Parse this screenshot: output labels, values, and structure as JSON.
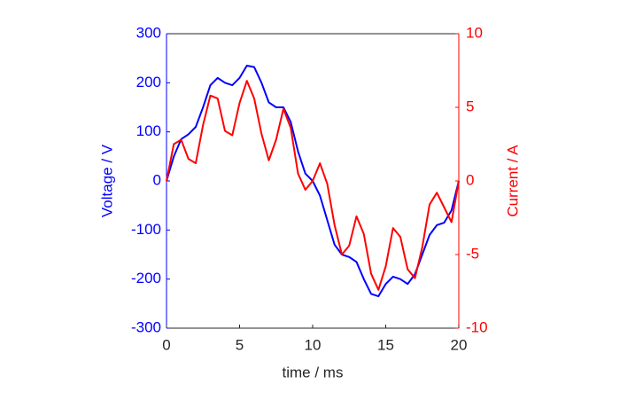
{
  "chart_data": {
    "type": "line",
    "x": [
      0,
      0.5,
      1,
      1.5,
      2,
      2.5,
      3,
      3.5,
      4,
      4.5,
      5,
      5.5,
      6,
      6.5,
      7,
      7.5,
      8,
      8.5,
      9,
      9.5,
      10,
      10.5,
      11,
      11.5,
      12,
      12.5,
      13,
      13.5,
      14,
      14.5,
      15,
      15.5,
      16,
      16.5,
      17,
      17.5,
      18,
      18.5,
      19,
      19.5,
      20
    ],
    "series": [
      {
        "name": "Voltage",
        "color": "#0000ff",
        "values": [
          0,
          50,
          85,
          95,
          110,
          150,
          195,
          210,
          200,
          195,
          210,
          235,
          232,
          200,
          160,
          150,
          150,
          120,
          60,
          15,
          0,
          -30,
          -80,
          -130,
          -150,
          -155,
          -165,
          -200,
          -230,
          -235,
          -210,
          -195,
          -200,
          -210,
          -190,
          -150,
          -110,
          -90,
          -85,
          -60,
          0
        ]
      },
      {
        "name": "Current",
        "color": "#ff0000",
        "axis": "y2",
        "values": [
          0,
          2.5,
          2.8,
          1.5,
          1.2,
          3.8,
          5.8,
          5.6,
          3.4,
          3.1,
          5.3,
          6.8,
          5.6,
          3.2,
          1.4,
          2.8,
          4.9,
          3.6,
          0.5,
          -0.6,
          0,
          1.2,
          -0.2,
          -3,
          -5,
          -4.4,
          -2.4,
          -3.6,
          -6.3,
          -7.4,
          -5.8,
          -3.2,
          -3.8,
          -6,
          -6.6,
          -4.5,
          -1.6,
          -0.8,
          -1.8,
          -2.8,
          0
        ]
      }
    ],
    "xlabel": "time / ms",
    "ylabel": "Voltage / V",
    "y2label": "Current / A",
    "xlim": [
      0,
      20
    ],
    "xticks": [
      0,
      5,
      10,
      15,
      20
    ],
    "ylim": [
      -300,
      300
    ],
    "yticks": [
      -300,
      -200,
      -100,
      0,
      100,
      200,
      300
    ],
    "y2lim": [
      -10,
      10
    ],
    "y2ticks": [
      -10,
      -5,
      0,
      5,
      10
    ]
  }
}
